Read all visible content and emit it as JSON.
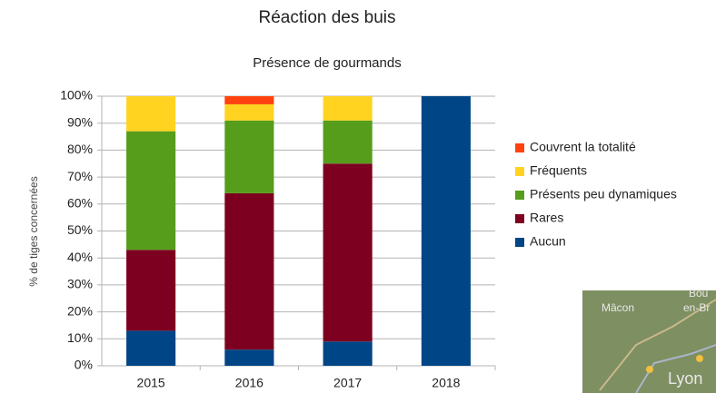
{
  "chart_data": {
    "type": "stacked_bar",
    "title": "Réaction des buis",
    "subtitle": "Présence de gourmands",
    "y_label": "% de tiges concernées",
    "categories": [
      "2015",
      "2016",
      "2017",
      "2018"
    ],
    "series": [
      {
        "name": "Aucun",
        "color": "#004586",
        "values": [
          13,
          6,
          9,
          100
        ]
      },
      {
        "name": "Rares",
        "color": "#7e0021",
        "values": [
          30,
          58,
          66,
          0
        ]
      },
      {
        "name": "Présents peu dynamiques",
        "color": "#579d1c",
        "values": [
          44,
          27,
          16,
          0
        ]
      },
      {
        "name": "Fréquents",
        "color": "#ffd320",
        "values": [
          13,
          6,
          9,
          0
        ]
      },
      {
        "name": "Couvrent la totalité",
        "color": "#ff420e",
        "values": [
          0,
          3,
          0,
          0
        ]
      }
    ],
    "ylim": [
      0,
      100
    ],
    "yticks": [
      {
        "value": 0,
        "label": "0%"
      },
      {
        "value": 10,
        "label": "10%"
      },
      {
        "value": 20,
        "label": "20%"
      },
      {
        "value": 30,
        "label": "30%"
      },
      {
        "value": 40,
        "label": "40%"
      },
      {
        "value": 50,
        "label": "50%"
      },
      {
        "value": 60,
        "label": "60%"
      },
      {
        "value": 70,
        "label": "70%"
      },
      {
        "value": 80,
        "label": "80%"
      },
      {
        "value": 90,
        "label": "90%"
      },
      {
        "value": 100,
        "label": "100%"
      }
    ],
    "grid": true,
    "legend": "right"
  },
  "map_inset": {
    "labels": [
      "Mâcon",
      "Bou",
      "en-Br",
      "Lyon"
    ]
  }
}
